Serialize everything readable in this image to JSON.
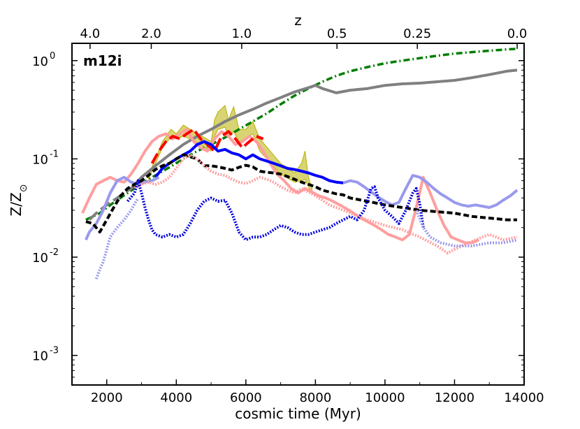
{
  "chart_data": {
    "type": "line",
    "panel_label": "m12i",
    "xlabel": "cosmic time (Myr)",
    "ylabel": "Z/Z",
    "ylabel_sub": "⊙",
    "top_axis_label": "z",
    "xlim": [
      1000,
      14000
    ],
    "ylim": [
      0.0005,
      1.5
    ],
    "yscale": "log",
    "x_ticks": [
      2000,
      4000,
      6000,
      8000,
      10000,
      12000,
      14000
    ],
    "x_tick_labels": [
      "2000",
      "4000",
      "6000",
      "8000",
      "10000",
      "12000",
      "14000"
    ],
    "y_ticks": [
      {
        "value": 1,
        "base": "10",
        "exp": "0"
      },
      {
        "value": 0.1,
        "base": "10",
        "exp": "-1"
      },
      {
        "value": 0.01,
        "base": "10",
        "exp": "-2"
      },
      {
        "value": 0.001,
        "base": "10",
        "exp": "-3"
      }
    ],
    "top_ticks": [
      {
        "label": "4.0",
        "t": 1520
      },
      {
        "label": "2.0",
        "t": 3280
      },
      {
        "label": "1.0",
        "t": 5880
      },
      {
        "label": "0.5",
        "t": 8620
      },
      {
        "label": "0.25",
        "t": 10930
      },
      {
        "label": "0.0",
        "t": 13800
      }
    ],
    "band": {
      "name": "yellow shaded band",
      "color": "#b8b000",
      "x": [
        3200,
        3400,
        3600,
        3800,
        3850,
        4000,
        4200,
        4400,
        5000,
        5100,
        5200,
        5400,
        5500,
        5650,
        5800,
        6000,
        6200,
        6400,
        7000,
        7400,
        7600,
        7700,
        7800,
        7900
      ],
      "upper": [
        0.068,
        0.1,
        0.15,
        0.19,
        0.2,
        0.18,
        0.22,
        0.2,
        0.15,
        0.25,
        0.3,
        0.35,
        0.25,
        0.34,
        0.2,
        0.2,
        0.24,
        0.16,
        0.09,
        0.072,
        0.09,
        0.12,
        0.065,
        0.05
      ],
      "lower": [
        0.062,
        0.09,
        0.13,
        0.16,
        0.17,
        0.16,
        0.17,
        0.16,
        0.12,
        0.17,
        0.2,
        0.21,
        0.17,
        0.19,
        0.15,
        0.16,
        0.18,
        0.12,
        0.07,
        0.058,
        0.06,
        0.062,
        0.052,
        0.044
      ]
    },
    "series": [
      {
        "name": "green dash-dot",
        "color": "#007d00",
        "width": 3.5,
        "dash": "9,4,2,4",
        "opacity": 1,
        "x": [
          1400,
          1800,
          2200,
          2600,
          3000,
          3400,
          3800,
          4200,
          4600,
          5000,
          5400,
          5800,
          6200,
          6600,
          7000,
          7400,
          7800,
          8200,
          8600,
          9000,
          9500,
          10000,
          10500,
          11000,
          11500,
          12000,
          12500,
          13000,
          13500,
          13800
        ],
        "values": [
          0.024,
          0.028,
          0.036,
          0.045,
          0.056,
          0.068,
          0.082,
          0.1,
          0.12,
          0.14,
          0.165,
          0.2,
          0.24,
          0.29,
          0.36,
          0.44,
          0.52,
          0.61,
          0.7,
          0.78,
          0.86,
          0.94,
          1.0,
          1.06,
          1.12,
          1.18,
          1.22,
          1.26,
          1.3,
          1.32
        ]
      },
      {
        "name": "gray solid",
        "color": "#808080",
        "width": 4,
        "dash": "",
        "opacity": 1,
        "x": [
          2700,
          3000,
          3400,
          3800,
          4200,
          4600,
          5000,
          5400,
          5800,
          6200,
          6600,
          7000,
          7400,
          7800,
          8000,
          8200,
          8600,
          9000,
          9500,
          10000,
          10500,
          11000,
          11500,
          12000,
          12500,
          13000,
          13500,
          13800
        ],
        "values": [
          0.05,
          0.065,
          0.085,
          0.11,
          0.14,
          0.17,
          0.2,
          0.24,
          0.28,
          0.32,
          0.37,
          0.42,
          0.48,
          0.53,
          0.56,
          0.52,
          0.47,
          0.5,
          0.52,
          0.56,
          0.58,
          0.59,
          0.61,
          0.63,
          0.67,
          0.72,
          0.78,
          0.8
        ]
      },
      {
        "name": "gray dashed",
        "color": "#808080",
        "width": 4,
        "dash": "16,6",
        "opacity": 1,
        "x": [
          1500,
          1700,
          1900,
          2100,
          2300,
          2500,
          2700
        ],
        "values": [
          0.024,
          0.028,
          0.032,
          0.036,
          0.04,
          0.045,
          0.05
        ]
      },
      {
        "name": "light red solid",
        "color": "#ff9e9e",
        "width": 4,
        "dash": "",
        "opacity": 1,
        "x": [
          1300,
          1500,
          1700,
          1900,
          2100,
          2300,
          2500,
          2700,
          2900,
          3100,
          3300,
          3500,
          3700,
          3900,
          4100,
          4300,
          4500,
          4700,
          4900,
          5100,
          5300,
          5500,
          5700,
          5900,
          6100,
          6300,
          6500,
          6700,
          6900,
          7100,
          7300,
          7500,
          7700,
          7900,
          8100,
          8300,
          8500,
          8700,
          8900,
          9100,
          9300,
          9500,
          9700,
          9900,
          10100,
          10300,
          10500,
          10700,
          10900,
          11100,
          11300,
          11500,
          11700,
          11900,
          12100,
          12300,
          12500,
          12700
        ],
        "values": [
          0.028,
          0.04,
          0.055,
          0.06,
          0.065,
          0.06,
          0.058,
          0.07,
          0.09,
          0.12,
          0.15,
          0.17,
          0.18,
          0.16,
          0.18,
          0.2,
          0.15,
          0.13,
          0.12,
          0.16,
          0.19,
          0.17,
          0.14,
          0.15,
          0.17,
          0.15,
          0.12,
          0.09,
          0.07,
          0.06,
          0.05,
          0.045,
          0.05,
          0.046,
          0.042,
          0.04,
          0.037,
          0.034,
          0.031,
          0.028,
          0.025,
          0.023,
          0.021,
          0.019,
          0.017,
          0.016,
          0.015,
          0.017,
          0.032,
          0.065,
          0.045,
          0.03,
          0.021,
          0.016,
          0.015,
          0.014,
          0.014,
          0.015
        ]
      },
      {
        "name": "red dashed",
        "color": "#ff0000",
        "width": 4,
        "dash": "16,6",
        "opacity": 1,
        "x": [
          3300,
          3500,
          3700,
          3900,
          4100,
          4300,
          4500,
          4700,
          4900,
          5100,
          5300,
          5500,
          5700,
          5900,
          6100,
          6300,
          6500
        ],
        "values": [
          0.09,
          0.12,
          0.15,
          0.17,
          0.16,
          0.18,
          0.2,
          0.16,
          0.14,
          0.12,
          0.17,
          0.19,
          0.16,
          0.13,
          0.15,
          0.17,
          0.16
        ]
      },
      {
        "name": "blue solid",
        "color": "#0000ff",
        "width": 4,
        "dash": "",
        "opacity": 1,
        "x": [
          3400,
          3600,
          3800,
          4000,
          4200,
          4400,
          4600,
          4800,
          5000,
          5200,
          5400,
          5600,
          5800,
          6000,
          6200,
          6400,
          6600,
          6800,
          7000,
          7200,
          7400,
          7600,
          7800,
          8000,
          8200,
          8400,
          8600,
          8800
        ],
        "values": [
          0.065,
          0.08,
          0.09,
          0.1,
          0.11,
          0.12,
          0.14,
          0.15,
          0.14,
          0.12,
          0.125,
          0.115,
          0.11,
          0.1,
          0.11,
          0.1,
          0.095,
          0.09,
          0.085,
          0.08,
          0.078,
          0.075,
          0.072,
          0.068,
          0.065,
          0.06,
          0.058,
          0.057
        ]
      },
      {
        "name": "light blue solid",
        "color": "#9999ee",
        "width": 4,
        "dash": "",
        "opacity": 1,
        "x": [
          1400,
          1500,
          1700,
          1900,
          2100,
          2300,
          2500,
          2700,
          2900,
          3100,
          3300,
          3500,
          8800,
          9000,
          9200,
          9400,
          9600,
          9800,
          10000,
          10200,
          10400,
          10600,
          10800,
          11000,
          11200,
          11400,
          11600,
          11800,
          12000,
          12200,
          12400,
          12600,
          12800,
          13000,
          13200,
          13400,
          13600,
          13800
        ],
        "values": [
          0.015,
          0.018,
          0.022,
          0.03,
          0.045,
          0.06,
          0.065,
          0.058,
          0.055,
          0.058,
          0.06,
          0.065,
          0.057,
          0.06,
          0.058,
          0.052,
          0.046,
          0.041,
          0.037,
          0.034,
          0.036,
          0.05,
          0.068,
          0.065,
          0.058,
          0.05,
          0.044,
          0.04,
          0.036,
          0.034,
          0.033,
          0.034,
          0.033,
          0.032,
          0.034,
          0.038,
          0.042,
          0.048
        ]
      },
      {
        "name": "black dashed",
        "color": "#000000",
        "width": 4,
        "dash": "8,4",
        "opacity": 1,
        "x": [
          1400,
          1600,
          1800,
          2000,
          2200,
          2400,
          2600,
          2800,
          3000,
          3200,
          3400,
          3600,
          3800,
          4000,
          4200,
          4400,
          4600,
          4800,
          5000,
          5200,
          5400,
          5600,
          5800,
          6000,
          6200,
          6400,
          6600,
          6800,
          7000,
          7200,
          7400,
          7600,
          7800,
          8000,
          8200,
          8400,
          8600,
          8800,
          9000,
          9500,
          10000,
          10500,
          11000,
          11500,
          12000,
          12500,
          13000,
          13500,
          13800
        ],
        "values": [
          0.023,
          0.022,
          0.018,
          0.024,
          0.032,
          0.042,
          0.05,
          0.055,
          0.06,
          0.068,
          0.078,
          0.085,
          0.09,
          0.1,
          0.11,
          0.105,
          0.1,
          0.085,
          0.085,
          0.083,
          0.08,
          0.077,
          0.082,
          0.086,
          0.083,
          0.075,
          0.073,
          0.072,
          0.07,
          0.066,
          0.062,
          0.058,
          0.055,
          0.052,
          0.048,
          0.046,
          0.044,
          0.043,
          0.04,
          0.037,
          0.034,
          0.032,
          0.03,
          0.029,
          0.028,
          0.026,
          0.025,
          0.024,
          0.024
        ]
      },
      {
        "name": "light red dotted",
        "color": "#ff9e9e",
        "width": 4,
        "dash": "2,2",
        "opacity": 1,
        "x": [
          2800,
          3000,
          3200,
          3400,
          3600,
          3800,
          4000,
          4200,
          4400,
          4600,
          4800,
          5000,
          5200,
          5400,
          5600,
          5800,
          6000,
          6200,
          6400,
          6600,
          6800,
          7000,
          7200,
          7400,
          7600,
          7800,
          8000,
          8200,
          8400,
          8600,
          8800,
          9000,
          9500,
          10000,
          10500,
          11000,
          11500,
          11800,
          12000,
          12400,
          12800,
          13000,
          13400,
          13800
        ],
        "values": [
          0.05,
          0.055,
          0.058,
          0.055,
          0.058,
          0.065,
          0.08,
          0.1,
          0.11,
          0.1,
          0.085,
          0.075,
          0.07,
          0.068,
          0.062,
          0.058,
          0.056,
          0.06,
          0.065,
          0.062,
          0.058,
          0.052,
          0.048,
          0.045,
          0.05,
          0.046,
          0.042,
          0.038,
          0.034,
          0.032,
          0.03,
          0.028,
          0.024,
          0.021,
          0.019,
          0.016,
          0.013,
          0.011,
          0.012,
          0.014,
          0.016,
          0.017,
          0.015,
          0.016
        ]
      },
      {
        "name": "blue dotted",
        "color": "#0000dd",
        "width": 4,
        "dash": "2,2",
        "opacity": 1,
        "x": [
          2600,
          2800,
          2900,
          3000,
          3100,
          3200,
          3300,
          3400,
          3600,
          3800,
          4000,
          4200,
          4400,
          4600,
          4800,
          5000,
          5200,
          5400,
          5600,
          5800,
          6000,
          6200,
          6400,
          6600,
          6800,
          7000,
          7200,
          7400,
          7600,
          7800,
          8000,
          8200,
          8400,
          8600,
          8800,
          9000,
          9200,
          9400,
          9600,
          9700,
          9800,
          10000,
          10200,
          10400,
          10600,
          10800,
          10900,
          11000,
          11100
        ],
        "values": [
          0.037,
          0.045,
          0.06,
          0.045,
          0.032,
          0.024,
          0.019,
          0.017,
          0.016,
          0.017,
          0.016,
          0.017,
          0.022,
          0.03,
          0.037,
          0.04,
          0.037,
          0.038,
          0.028,
          0.018,
          0.015,
          0.016,
          0.016,
          0.017,
          0.019,
          0.021,
          0.02,
          0.018,
          0.017,
          0.017,
          0.018,
          0.019,
          0.02,
          0.022,
          0.024,
          0.026,
          0.024,
          0.03,
          0.05,
          0.052,
          0.04,
          0.03,
          0.026,
          0.022,
          0.03,
          0.045,
          0.05,
          0.035,
          0.02
        ]
      },
      {
        "name": "light blue dotted",
        "color": "#9999ee",
        "width": 4,
        "dash": "2,2",
        "opacity": 1,
        "x": [
          1700,
          1800,
          1900,
          2000,
          2100,
          2300,
          2500,
          2700,
          2800,
          2900,
          10900,
          11100,
          11300,
          11600,
          12000,
          12500,
          13000,
          13400,
          13800
        ],
        "values": [
          0.006,
          0.0075,
          0.009,
          0.012,
          0.016,
          0.02,
          0.024,
          0.03,
          0.035,
          0.04,
          0.03,
          0.02,
          0.016,
          0.014,
          0.013,
          0.013,
          0.014,
          0.014,
          0.015
        ]
      }
    ]
  }
}
